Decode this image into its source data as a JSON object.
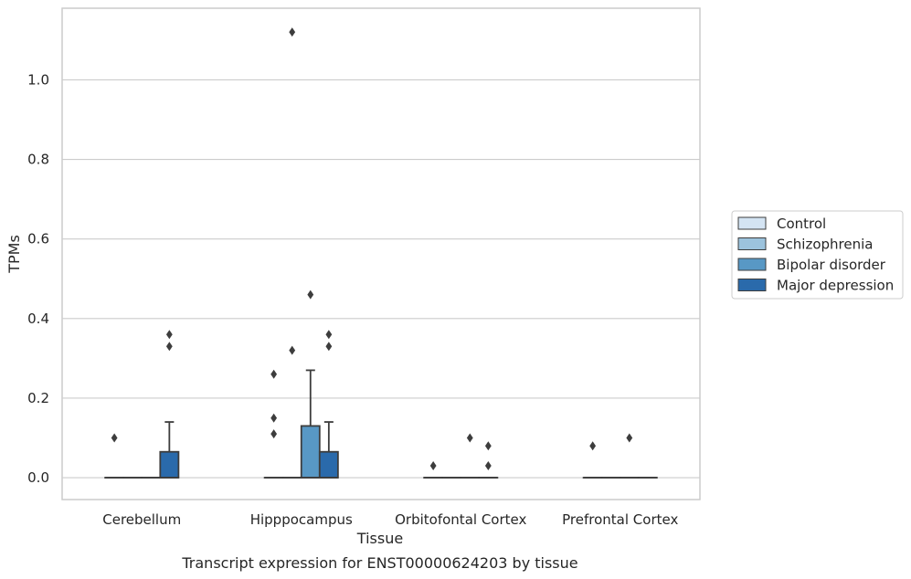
{
  "chart_data": {
    "type": "box",
    "title": "",
    "caption": "Transcript expression for ENST00000624203 by tissue",
    "xlabel": "Tissue",
    "ylabel": "TPMs",
    "ylim": [
      -0.055,
      1.18
    ],
    "yticks": [
      0.0,
      0.2,
      0.4,
      0.6,
      0.8,
      1.0
    ],
    "ytick_labels": [
      "0.0",
      "0.2",
      "0.4",
      "0.6",
      "0.8",
      "1.0"
    ],
    "grid": "horizontal",
    "legend_position": "right",
    "categories": [
      "Cerebellum",
      "Hipppocampus",
      "Orbitofontal Cortex",
      "Prefrontal Cortex"
    ],
    "series": [
      {
        "name": "Control",
        "color": "#d4e4f3",
        "boxes": [
          {
            "q1": 0,
            "median": 0,
            "q3": 0,
            "whisker_low": 0,
            "whisker_high": 0,
            "outliers": [
              0.1
            ]
          },
          {
            "q1": 0,
            "median": 0,
            "q3": 0,
            "whisker_low": 0,
            "whisker_high": 0,
            "outliers": [
              0.11,
              0.15,
              0.26
            ]
          },
          {
            "q1": 0,
            "median": 0,
            "q3": 0,
            "whisker_low": 0,
            "whisker_high": 0,
            "outliers": [
              0.03
            ]
          },
          {
            "q1": 0,
            "median": 0,
            "q3": 0,
            "whisker_low": 0,
            "whisker_high": 0,
            "outliers": [
              0.08
            ]
          }
        ]
      },
      {
        "name": "Schizophrenia",
        "color": "#9cc3dd",
        "boxes": [
          {
            "q1": 0,
            "median": 0,
            "q3": 0,
            "whisker_low": 0,
            "whisker_high": 0,
            "outliers": []
          },
          {
            "q1": 0,
            "median": 0,
            "q3": 0,
            "whisker_low": 0,
            "whisker_high": 0,
            "outliers": [
              0.32,
              1.12
            ]
          },
          {
            "q1": 0,
            "median": 0,
            "q3": 0,
            "whisker_low": 0,
            "whisker_high": 0,
            "outliers": []
          },
          {
            "q1": 0,
            "median": 0,
            "q3": 0,
            "whisker_low": 0,
            "whisker_high": 0,
            "outliers": []
          }
        ]
      },
      {
        "name": "Bipolar disorder",
        "color": "#5898c5",
        "boxes": [
          {
            "q1": 0,
            "median": 0,
            "q3": 0,
            "whisker_low": 0,
            "whisker_high": 0,
            "outliers": []
          },
          {
            "q1": 0,
            "median": 0,
            "q3": 0.13,
            "whisker_low": 0,
            "whisker_high": 0.27,
            "outliers": [
              0.46
            ]
          },
          {
            "q1": 0,
            "median": 0,
            "q3": 0,
            "whisker_low": 0,
            "whisker_high": 0,
            "outliers": [
              0.1
            ]
          },
          {
            "q1": 0,
            "median": 0,
            "q3": 0,
            "whisker_low": 0,
            "whisker_high": 0,
            "outliers": [
              0.1
            ]
          }
        ]
      },
      {
        "name": "Major depression",
        "color": "#2a6aab",
        "boxes": [
          {
            "q1": 0,
            "median": 0,
            "q3": 0.065,
            "whisker_low": 0,
            "whisker_high": 0.14,
            "outliers": [
              0.33,
              0.36
            ]
          },
          {
            "q1": 0,
            "median": 0,
            "q3": 0.065,
            "whisker_low": 0,
            "whisker_high": 0.14,
            "outliers": [
              0.33,
              0.36
            ]
          },
          {
            "q1": 0,
            "median": 0,
            "q3": 0,
            "whisker_low": 0,
            "whisker_high": 0,
            "outliers": [
              0.03,
              0.08
            ]
          },
          {
            "q1": 0,
            "median": 0,
            "q3": 0,
            "whisker_low": 0,
            "whisker_high": 0,
            "outliers": []
          }
        ]
      }
    ]
  }
}
